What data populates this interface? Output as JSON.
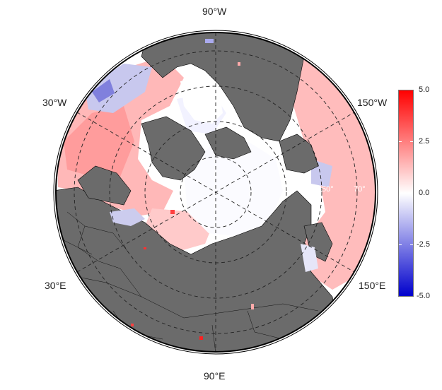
{
  "map": {
    "projection": "north polar stereographic",
    "land_color": "#6b6b6b",
    "ocean_color": "#ffffff",
    "longitude_labels": {
      "top": "90°W",
      "upper_left": "30°W",
      "upper_right": "150°W",
      "lower_left": "30°E",
      "lower_right": "150°E",
      "bottom": "90°E"
    },
    "latitude_labels": [
      "60°",
      "50°",
      "70°"
    ]
  },
  "colorbar": {
    "ticks": [
      "5.0",
      "2.5",
      "0.0",
      "-2.5",
      "-5.0"
    ],
    "max_color": "#ff0000",
    "mid_color": "#ffffff",
    "min_color": "#0000cc",
    "range": [
      -5.0,
      5.0
    ]
  }
}
